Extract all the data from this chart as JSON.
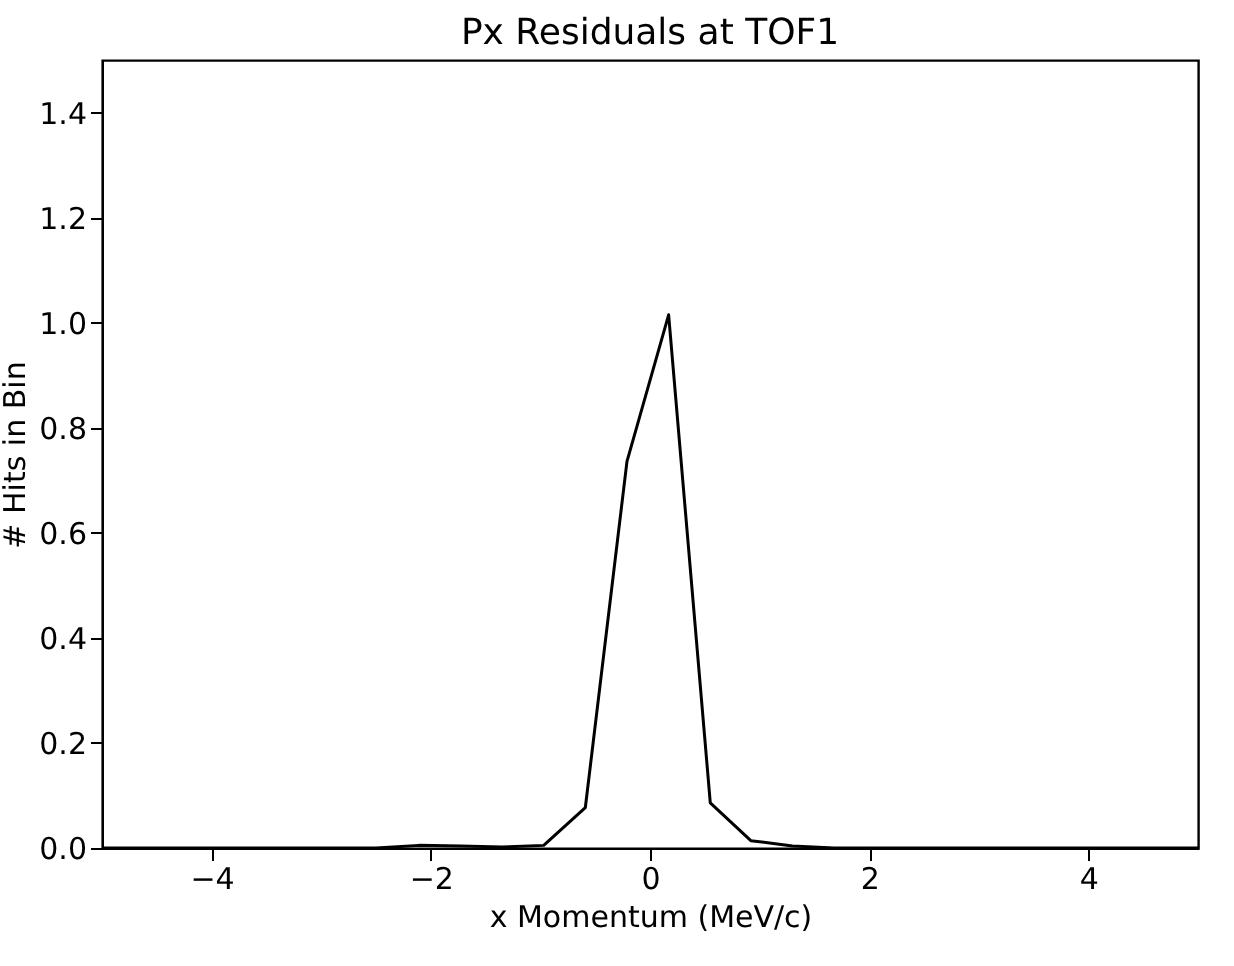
{
  "chart_data": {
    "type": "line",
    "title": "Px Residuals at TOF1",
    "xlabel": "x Momentum (MeV/c)",
    "ylabel": "# Hits in Bin",
    "x": [
      -5,
      -2.5,
      -2.11,
      -1.73,
      -1.35,
      -0.97,
      -0.59,
      -0.21,
      0.17,
      0.55,
      0.92,
      1.3,
      1.68,
      5
    ],
    "series": [
      {
        "color": "#000000",
        "values": [
          0,
          0,
          0.005,
          0.004,
          0.002,
          0.005,
          0.077,
          0.736,
          1.015,
          0.086,
          0.014,
          0.004,
          0,
          0
        ]
      }
    ],
    "xlim": [
      -5,
      5
    ],
    "xticks": [
      {
        "value": -4,
        "label": "−4"
      },
      {
        "value": -2,
        "label": "−2"
      },
      0,
      2,
      4
    ],
    "ylim": [
      0,
      1.5
    ],
    "yticks": [
      {
        "value": 0,
        "label": "0.0"
      },
      0.2,
      0.4,
      0.6,
      0.8,
      {
        "value": 1,
        "label": "1.0"
      },
      1.2,
      1.4
    ],
    "grid": false,
    "marker": "none",
    "line_style": "solid"
  }
}
